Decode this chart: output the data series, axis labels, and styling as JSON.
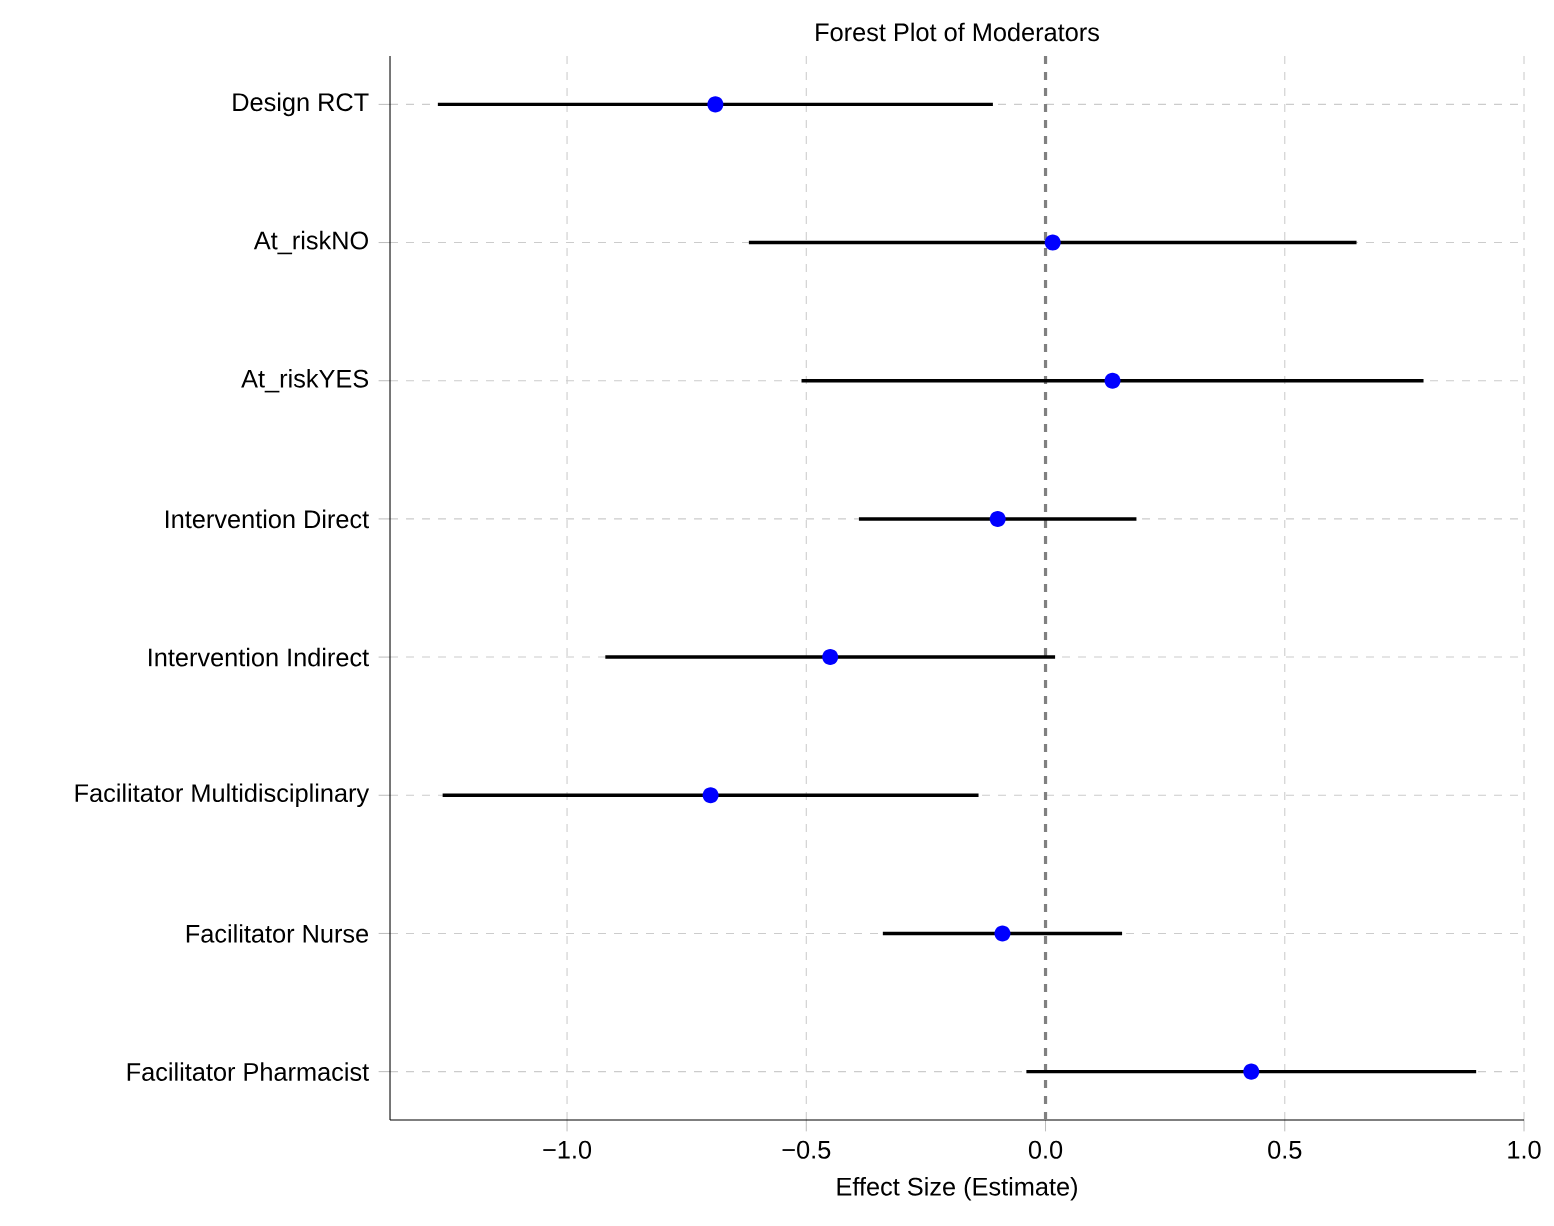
{
  "chart_data": {
    "type": "scatter",
    "orientation": "horizontal",
    "title": "Forest Plot of Moderators",
    "xlabel": "Effect Size (Estimate)",
    "categories": [
      "Design RCT",
      "At_riskNO",
      "At_riskYES",
      "Intervention Direct",
      "Intervention Indirect",
      "Facilitator Multidisciplinary",
      "Facilitator Nurse",
      "Facilitator Pharmacist"
    ],
    "values": [
      -0.69,
      0.015,
      0.14,
      -0.1,
      -0.45,
      -0.7,
      -0.09,
      0.43
    ],
    "errors": [
      [
        -1.27,
        -0.11
      ],
      [
        -0.62,
        0.65
      ],
      [
        -0.51,
        0.79
      ],
      [
        -0.39,
        0.19
      ],
      [
        -0.92,
        0.02
      ],
      [
        -1.26,
        -0.14
      ],
      [
        -0.34,
        0.16
      ],
      [
        -0.04,
        0.9
      ]
    ],
    "color": "#0000ff",
    "marker": "circle",
    "grid": true,
    "xlim": [
      -1.37,
      1.0
    ],
    "xticks": [
      {
        "value": -1.0,
        "label": "−1.0"
      },
      {
        "value": -0.5,
        "label": "−0.5"
      },
      {
        "value": 0.0,
        "label": "0.0"
      },
      {
        "value": 0.5,
        "label": "0.5"
      },
      {
        "value": 1.0,
        "label": "1.0"
      }
    ],
    "ref_lines": [
      {
        "axis": "x",
        "value": 0,
        "color": "#808080",
        "line_style": "dashed"
      }
    ]
  }
}
